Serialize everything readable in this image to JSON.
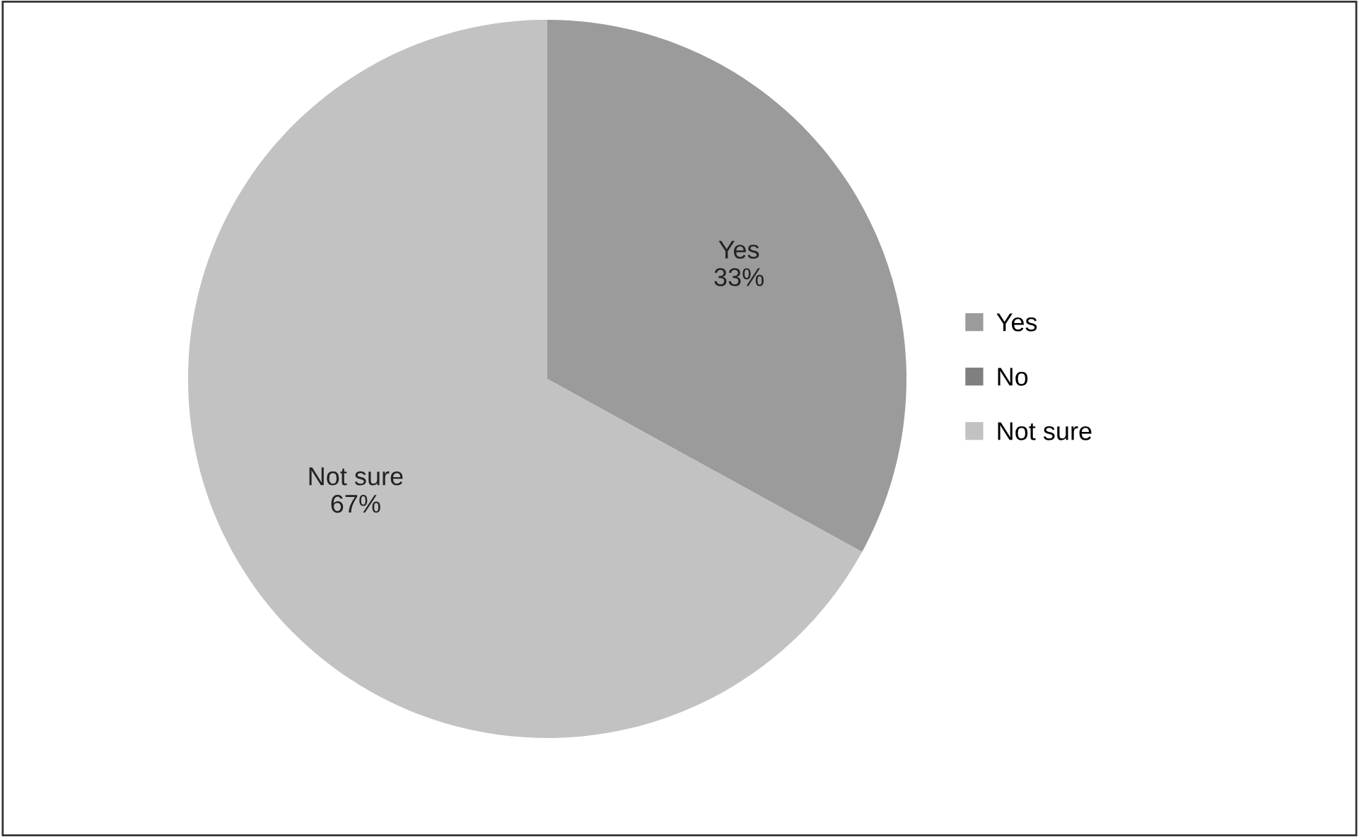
{
  "chart_data": {
    "type": "pie",
    "categories": [
      "Yes",
      "No",
      "Not sure"
    ],
    "values": [
      33,
      0,
      67
    ],
    "colors": [
      "#9b9b9b",
      "#7f7f7f",
      "#c2c2c2"
    ],
    "value_labels": [
      "33%",
      null,
      "67%"
    ],
    "legend": "right"
  }
}
